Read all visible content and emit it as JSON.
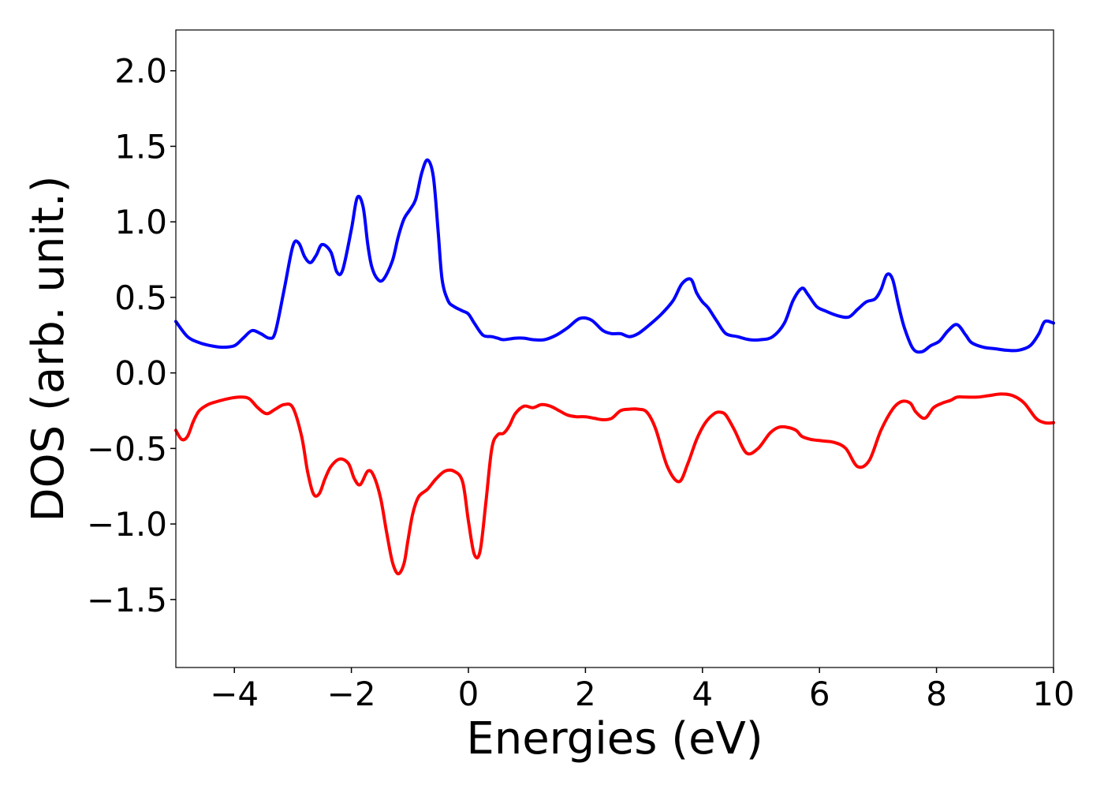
{
  "chart_data": {
    "type": "line",
    "xlabel": "Energies (eV)",
    "ylabel": "DOS (arb. unit.)",
    "xlim": [
      -5,
      10
    ],
    "ylim": [
      -1.95,
      2.27
    ],
    "grid": false,
    "x_ticks": [
      -4,
      -2,
      0,
      2,
      4,
      6,
      8,
      10
    ],
    "x_tick_labels": [
      "−4",
      "−2",
      "0",
      "2",
      "4",
      "6",
      "8",
      "10"
    ],
    "y_ticks": [
      2.0,
      1.5,
      1.0,
      0.5,
      0.0,
      -0.5,
      -1.0,
      -1.5
    ],
    "y_tick_labels": [
      "2.0",
      "1.5",
      "1.0",
      "0.5",
      "0.0",
      "−0.5",
      "−1.0",
      "−1.5"
    ],
    "series": [
      {
        "color": "#0000ff",
        "x": [
          -5.0,
          -4.8,
          -4.6,
          -4.4,
          -4.2,
          -4.0,
          -3.85,
          -3.7,
          -3.55,
          -3.4,
          -3.3,
          -3.15,
          -3.0,
          -2.9,
          -2.8,
          -2.7,
          -2.6,
          -2.5,
          -2.35,
          -2.25,
          -2.15,
          -2.0,
          -1.9,
          -1.8,
          -1.72,
          -1.65,
          -1.55,
          -1.45,
          -1.3,
          -1.2,
          -1.1,
          -1.0,
          -0.9,
          -0.8,
          -0.7,
          -0.6,
          -0.52,
          -0.45,
          -0.35,
          -0.25,
          -0.1,
          0.0,
          0.1,
          0.25,
          0.4,
          0.5,
          0.6,
          0.8,
          0.95,
          1.1,
          1.3,
          1.5,
          1.7,
          1.9,
          2.1,
          2.3,
          2.45,
          2.6,
          2.75,
          2.9,
          3.1,
          3.3,
          3.5,
          3.65,
          3.8,
          3.9,
          4.0,
          4.1,
          4.25,
          4.4,
          4.6,
          4.8,
          5.0,
          5.2,
          5.4,
          5.55,
          5.7,
          5.8,
          5.95,
          6.1,
          6.3,
          6.5,
          6.65,
          6.8,
          6.95,
          7.05,
          7.15,
          7.25,
          7.35,
          7.45,
          7.6,
          7.75,
          7.9,
          8.05,
          8.2,
          8.35,
          8.5,
          8.6,
          8.8,
          9.0,
          9.2,
          9.4,
          9.6,
          9.75,
          9.85,
          10.0
        ],
        "y": [
          0.34,
          0.24,
          0.2,
          0.18,
          0.17,
          0.18,
          0.23,
          0.28,
          0.26,
          0.23,
          0.27,
          0.55,
          0.84,
          0.86,
          0.77,
          0.73,
          0.78,
          0.85,
          0.8,
          0.67,
          0.68,
          0.95,
          1.16,
          1.1,
          0.85,
          0.7,
          0.62,
          0.62,
          0.74,
          0.9,
          1.02,
          1.08,
          1.15,
          1.32,
          1.41,
          1.3,
          0.95,
          0.62,
          0.48,
          0.44,
          0.41,
          0.39,
          0.33,
          0.25,
          0.24,
          0.23,
          0.22,
          0.23,
          0.23,
          0.22,
          0.22,
          0.25,
          0.3,
          0.36,
          0.35,
          0.28,
          0.26,
          0.26,
          0.24,
          0.26,
          0.32,
          0.39,
          0.48,
          0.59,
          0.62,
          0.53,
          0.47,
          0.43,
          0.34,
          0.26,
          0.24,
          0.22,
          0.22,
          0.24,
          0.33,
          0.48,
          0.56,
          0.52,
          0.44,
          0.41,
          0.38,
          0.37,
          0.42,
          0.47,
          0.49,
          0.55,
          0.65,
          0.62,
          0.45,
          0.3,
          0.16,
          0.14,
          0.18,
          0.21,
          0.28,
          0.32,
          0.25,
          0.2,
          0.17,
          0.16,
          0.15,
          0.15,
          0.18,
          0.26,
          0.34,
          0.33
        ]
      },
      {
        "color": "#ff0000",
        "x": [
          -5.0,
          -4.9,
          -4.8,
          -4.7,
          -4.6,
          -4.45,
          -4.3,
          -4.1,
          -3.9,
          -3.75,
          -3.6,
          -3.45,
          -3.3,
          -3.15,
          -3.0,
          -2.85,
          -2.75,
          -2.65,
          -2.55,
          -2.45,
          -2.35,
          -2.2,
          -2.05,
          -1.95,
          -1.85,
          -1.72,
          -1.62,
          -1.5,
          -1.4,
          -1.3,
          -1.2,
          -1.1,
          -1.03,
          -0.95,
          -0.85,
          -0.7,
          -0.55,
          -0.4,
          -0.25,
          -0.1,
          0.0,
          0.1,
          0.2,
          0.3,
          0.4,
          0.5,
          0.6,
          0.7,
          0.8,
          0.95,
          1.1,
          1.25,
          1.4,
          1.55,
          1.7,
          1.85,
          2.0,
          2.15,
          2.3,
          2.45,
          2.6,
          2.75,
          2.9,
          3.05,
          3.2,
          3.4,
          3.6,
          3.75,
          3.9,
          4.05,
          4.2,
          4.3,
          4.4,
          4.55,
          4.75,
          4.95,
          5.15,
          5.3,
          5.45,
          5.6,
          5.7,
          5.85,
          6.05,
          6.25,
          6.45,
          6.65,
          6.85,
          7.05,
          7.25,
          7.4,
          7.55,
          7.65,
          7.8,
          7.95,
          8.1,
          8.25,
          8.35,
          8.5,
          8.7,
          8.9,
          9.1,
          9.3,
          9.5,
          9.7,
          9.85,
          10.0
        ],
        "y": [
          -0.38,
          -0.44,
          -0.42,
          -0.32,
          -0.25,
          -0.21,
          -0.19,
          -0.17,
          -0.16,
          -0.17,
          -0.23,
          -0.27,
          -0.24,
          -0.21,
          -0.23,
          -0.42,
          -0.65,
          -0.8,
          -0.8,
          -0.7,
          -0.62,
          -0.57,
          -0.6,
          -0.7,
          -0.74,
          -0.65,
          -0.68,
          -0.83,
          -1.05,
          -1.25,
          -1.33,
          -1.26,
          -1.1,
          -0.93,
          -0.82,
          -0.77,
          -0.7,
          -0.65,
          -0.65,
          -0.72,
          -0.98,
          -1.2,
          -1.18,
          -0.85,
          -0.5,
          -0.41,
          -0.4,
          -0.35,
          -0.27,
          -0.22,
          -0.23,
          -0.21,
          -0.22,
          -0.25,
          -0.28,
          -0.29,
          -0.29,
          -0.3,
          -0.31,
          -0.3,
          -0.25,
          -0.24,
          -0.24,
          -0.26,
          -0.37,
          -0.62,
          -0.72,
          -0.6,
          -0.44,
          -0.33,
          -0.27,
          -0.26,
          -0.28,
          -0.38,
          -0.53,
          -0.5,
          -0.4,
          -0.36,
          -0.36,
          -0.38,
          -0.42,
          -0.44,
          -0.45,
          -0.46,
          -0.5,
          -0.62,
          -0.58,
          -0.38,
          -0.24,
          -0.19,
          -0.2,
          -0.26,
          -0.3,
          -0.23,
          -0.2,
          -0.18,
          -0.16,
          -0.16,
          -0.16,
          -0.15,
          -0.14,
          -0.15,
          -0.2,
          -0.3,
          -0.33,
          -0.33
        ]
      }
    ]
  }
}
